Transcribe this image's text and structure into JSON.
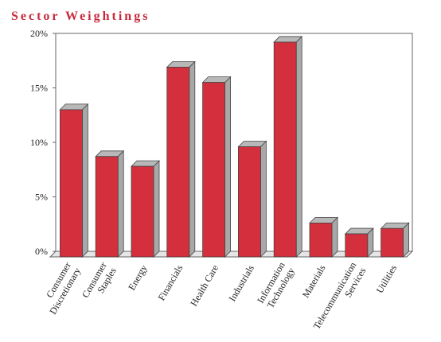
{
  "chart_data": {
    "type": "bar",
    "title": "Sector Weightings",
    "categories": [
      [
        "Consumer",
        "Discretionary"
      ],
      [
        "Consumer",
        "Staples"
      ],
      [
        "Energy"
      ],
      [
        "Financials"
      ],
      [
        "Health Care"
      ],
      [
        "Industrials"
      ],
      [
        "Information",
        "Technology"
      ],
      [
        "Materials"
      ],
      [
        "Telecommunication",
        "Services"
      ],
      [
        "Utilities"
      ]
    ],
    "values": [
      13.0,
      8.7,
      7.8,
      16.9,
      15.5,
      9.6,
      19.2,
      2.6,
      1.6,
      2.1
    ],
    "ylim": [
      0,
      20
    ],
    "yticks": [
      {
        "value": 0,
        "label": "0%"
      },
      {
        "value": 5,
        "label": "5%"
      },
      {
        "value": 10,
        "label": "10%"
      },
      {
        "value": 15,
        "label": "15%"
      },
      {
        "value": 20,
        "label": "20%"
      }
    ],
    "grid": false,
    "colors": {
      "bar_front": "#d42f3c",
      "bar_side": "#a8a8a8",
      "bar_top": "#b8b8b8",
      "title": "#c8283a"
    }
  }
}
